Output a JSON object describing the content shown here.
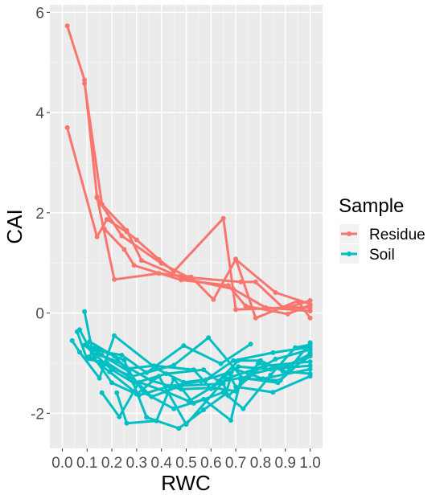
{
  "chart_data": {
    "type": "line",
    "xlabel": "RWC",
    "ylabel": "CAI",
    "xlim": [
      -0.05,
      1.05
    ],
    "ylim": [
      -2.7,
      6.15
    ],
    "x_ticks": [
      0.0,
      0.1,
      0.2,
      0.3,
      0.4,
      0.5,
      0.6,
      0.7,
      0.8,
      0.9,
      1.0
    ],
    "x_tick_labels": [
      "0.0",
      "0.1",
      "0.2",
      "0.3",
      "0.4",
      "0.5",
      "0.6",
      "0.7",
      "0.8",
      "0.9",
      "1.0"
    ],
    "y_ticks": [
      -2,
      0,
      2,
      4,
      6
    ],
    "y_tick_labels": [
      "-2",
      "0",
      "2",
      "4",
      "6"
    ],
    "grid": true,
    "legend": {
      "title": "Sample",
      "placement": "right"
    },
    "series": [
      {
        "name": "Residue",
        "color": "#F8766D",
        "lines": [
          [
            [
              0.02,
              5.73
            ],
            [
              0.09,
              4.65
            ],
            [
              0.14,
              2.32
            ],
            [
              0.21,
              0.67
            ],
            [
              0.39,
              0.79
            ],
            [
              0.52,
              0.72
            ],
            [
              0.61,
              0.27
            ],
            [
              0.7,
              1.07
            ],
            [
              0.86,
              0.41
            ],
            [
              1.0,
              0.18
            ]
          ],
          [
            [
              0.02,
              3.7
            ],
            [
              0.14,
              1.52
            ],
            [
              0.18,
              1.87
            ],
            [
              0.26,
              1.62
            ],
            [
              0.3,
              1.46
            ],
            [
              0.39,
              1.07
            ],
            [
              0.45,
              0.83
            ],
            [
              0.65,
              1.89
            ],
            [
              0.7,
              0.07
            ],
            [
              0.91,
              0.11
            ],
            [
              1.0,
              0.25
            ]
          ],
          [
            [
              0.09,
              4.58
            ],
            [
              0.16,
              2.17
            ],
            [
              0.26,
              1.65
            ],
            [
              0.32,
              1.05
            ],
            [
              0.49,
              0.69
            ],
            [
              0.69,
              0.48
            ],
            [
              0.82,
              0.11
            ],
            [
              1.0,
              0.04
            ]
          ],
          [
            [
              0.17,
              1.68
            ],
            [
              0.25,
              1.27
            ],
            [
              0.29,
              0.95
            ],
            [
              0.48,
              0.66
            ],
            [
              0.67,
              0.55
            ],
            [
              0.74,
              0.14
            ],
            [
              0.91,
              -0.02
            ],
            [
              1.0,
              0.16
            ]
          ],
          [
            [
              0.14,
              2.3
            ],
            [
              0.24,
              1.54
            ],
            [
              0.4,
              0.99
            ],
            [
              0.51,
              0.71
            ],
            [
              0.72,
              0.62
            ],
            [
              0.78,
              0.62
            ],
            [
              0.89,
              0.11
            ],
            [
              1.0,
              0.11
            ]
          ],
          [
            [
              0.7,
              1.08
            ],
            [
              0.78,
              -0.1
            ],
            [
              0.95,
              0.24
            ],
            [
              1.0,
              -0.1
            ]
          ]
        ]
      },
      {
        "name": "Soil",
        "color": "#00BFC4",
        "lines": [
          [
            [
              0.04,
              -0.55
            ],
            [
              0.07,
              -0.78
            ],
            [
              0.15,
              -1.3
            ],
            [
              0.21,
              -0.45
            ],
            [
              0.38,
              -1.11
            ],
            [
              0.49,
              -1.38
            ],
            [
              0.58,
              -1.33
            ],
            [
              0.69,
              -0.95
            ],
            [
              0.85,
              -0.79
            ],
            [
              1.0,
              -0.68
            ]
          ],
          [
            [
              0.06,
              -0.37
            ],
            [
              0.1,
              -0.92
            ],
            [
              0.18,
              -0.99
            ],
            [
              0.27,
              -1.28
            ],
            [
              0.45,
              -1.04
            ],
            [
              0.59,
              -0.49
            ],
            [
              0.73,
              -1.31
            ],
            [
              0.88,
              -1.34
            ],
            [
              1.0,
              -0.59
            ]
          ],
          [
            [
              0.09,
              0.03
            ],
            [
              0.12,
              -0.73
            ],
            [
              0.24,
              -0.84
            ],
            [
              0.34,
              -1.19
            ],
            [
              0.49,
              -0.65
            ],
            [
              0.64,
              -1.01
            ],
            [
              0.76,
              -0.62
            ]
          ],
          [
            [
              0.07,
              -0.33
            ],
            [
              0.13,
              -0.9
            ],
            [
              0.2,
              -1.39
            ],
            [
              0.3,
              -1.62
            ],
            [
              0.39,
              -1.26
            ],
            [
              0.5,
              -2.22
            ],
            [
              0.66,
              -1.31
            ],
            [
              0.82,
              -1.05
            ],
            [
              1.0,
              -0.97
            ]
          ],
          [
            [
              0.1,
              -0.64
            ],
            [
              0.16,
              -0.84
            ],
            [
              0.27,
              -1.17
            ],
            [
              0.33,
              -1.59
            ],
            [
              0.45,
              -1.91
            ],
            [
              0.57,
              -1.72
            ],
            [
              0.68,
              -2.14
            ],
            [
              0.72,
              -1.33
            ],
            [
              0.86,
              -0.92
            ],
            [
              1.0,
              -0.73
            ]
          ],
          [
            [
              0.11,
              -0.87
            ],
            [
              0.19,
              -1.17
            ],
            [
              0.31,
              -1.64
            ],
            [
              0.43,
              -1.46
            ],
            [
              0.56,
              -1.36
            ],
            [
              0.67,
              -1.19
            ],
            [
              0.7,
              -1.47
            ],
            [
              0.85,
              -1.58
            ],
            [
              1.0,
              -1.26
            ]
          ],
          [
            [
              0.16,
              -1.59
            ],
            [
              0.23,
              -2.07
            ],
            [
              0.31,
              -1.38
            ],
            [
              0.42,
              -1.57
            ],
            [
              0.51,
              -1.76
            ],
            [
              0.64,
              -1.37
            ],
            [
              0.72,
              -1.29
            ],
            [
              0.87,
              -1.39
            ],
            [
              1.0,
              -0.79
            ]
          ],
          [
            [
              0.1,
              -0.88
            ],
            [
              0.17,
              -1.02
            ],
            [
              0.28,
              -1.27
            ],
            [
              0.36,
              -1.67
            ],
            [
              0.48,
              -1.45
            ],
            [
              0.65,
              -1.41
            ],
            [
              0.67,
              -1.65
            ],
            [
              0.77,
              -1.21
            ],
            [
              0.91,
              -1.04
            ],
            [
              1.0,
              -0.82
            ]
          ],
          [
            [
              0.09,
              -0.64
            ],
            [
              0.2,
              -1.13
            ],
            [
              0.29,
              -1.4
            ],
            [
              0.42,
              -1.21
            ],
            [
              0.57,
              -1.13
            ],
            [
              0.63,
              -1.36
            ],
            [
              0.71,
              -1.07
            ],
            [
              0.84,
              -1.12
            ],
            [
              1.0,
              -1.05
            ]
          ],
          [
            [
              0.22,
              -1.59
            ],
            [
              0.26,
              -2.2
            ],
            [
              0.38,
              -2.15
            ],
            [
              0.45,
              -1.31
            ],
            [
              0.53,
              -1.8
            ],
            [
              0.65,
              -1.58
            ],
            [
              0.73,
              -1.91
            ],
            [
              0.84,
              -1.24
            ],
            [
              0.94,
              -0.69
            ],
            [
              1.0,
              -0.63
            ]
          ],
          [
            [
              0.11,
              -0.57
            ],
            [
              0.21,
              -0.86
            ],
            [
              0.26,
              -1.11
            ],
            [
              0.37,
              -1.05
            ],
            [
              0.53,
              -1.13
            ],
            [
              0.6,
              -1.51
            ],
            [
              0.71,
              -0.95
            ],
            [
              0.8,
              -0.95
            ],
            [
              0.89,
              -1.16
            ],
            [
              1.0,
              -1.21
            ]
          ],
          [
            [
              0.12,
              -0.79
            ],
            [
              0.22,
              -0.96
            ],
            [
              0.36,
              -1.35
            ],
            [
              0.48,
              -1.52
            ],
            [
              0.61,
              -1.49
            ],
            [
              0.7,
              -1.56
            ],
            [
              0.79,
              -1.01
            ],
            [
              0.93,
              -1.09
            ],
            [
              1.0,
              -0.86
            ]
          ],
          [
            [
              0.13,
              -0.69
            ],
            [
              0.25,
              -0.94
            ],
            [
              0.34,
              -2.08
            ],
            [
              0.47,
              -2.3
            ],
            [
              0.57,
              -1.93
            ],
            [
              0.66,
              -1.61
            ],
            [
              0.69,
              -1.11
            ],
            [
              0.81,
              -1.31
            ],
            [
              1.0,
              -1.12
            ]
          ]
        ]
      }
    ]
  }
}
